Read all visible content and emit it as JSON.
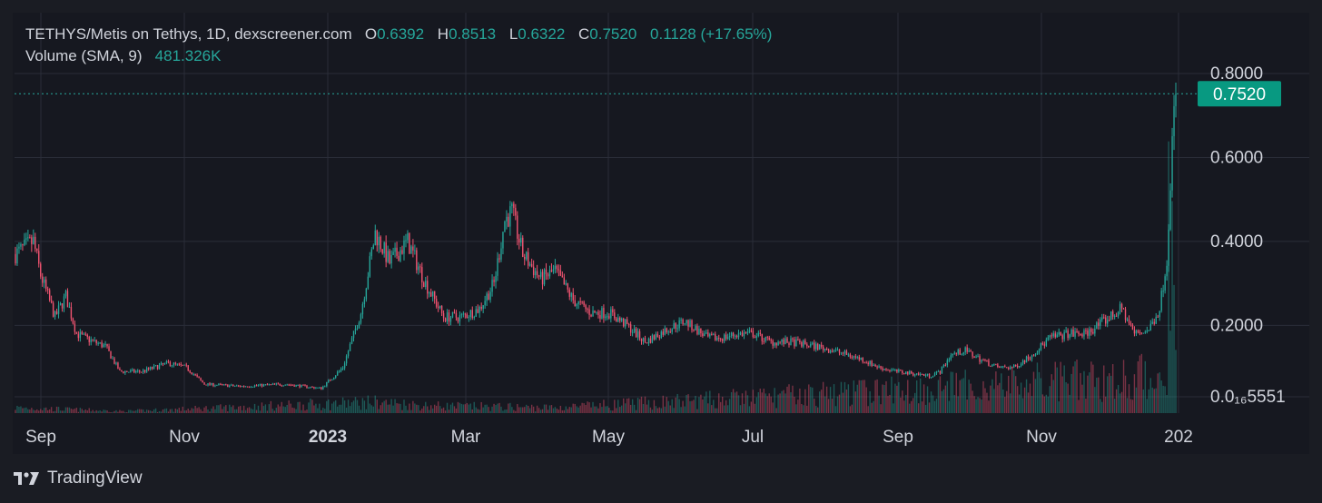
{
  "header": {
    "symbol": "TETHYS/Metis on Tethys, 1D, dexscreener.com",
    "o_label": "O",
    "o_value": "0.6392",
    "h_label": "H",
    "h_value": "0.8513",
    "l_label": "L",
    "l_value": "0.6322",
    "c_label": "C",
    "c_value": "0.7520",
    "change": "0.1128 (+17.65%)",
    "volume_label": "Volume (SMA, 9)",
    "volume_value": "481.326K"
  },
  "footer": {
    "brand": "TradingView"
  },
  "colors": {
    "up": "#26a69a",
    "down": "#ef5370",
    "grid": "#2a2d38",
    "text": "#d1d4dc",
    "price_tag": "#089981"
  },
  "chart_data": {
    "type": "candlestick",
    "title": "TETHYS/Metis on Tethys, 1D, dexscreener.com",
    "x_tick_labels": [
      "Sep",
      "Nov",
      "2023",
      "Mar",
      "May",
      "Jul",
      "Sep",
      "Nov",
      "202"
    ],
    "y_tick_labels": [
      "0.8000",
      "0.6000",
      "0.4000",
      "0.2000",
      "0.0₁₆5551"
    ],
    "y_ticks": [
      0.8,
      0.6,
      0.4,
      0.2,
      0.0
    ],
    "ylim": [
      0.0,
      0.85
    ],
    "last_price": 0.752,
    "last_price_label": "0.7520",
    "grid": true,
    "price_path_points": [
      [
        0,
        0.37
      ],
      [
        10,
        0.4
      ],
      [
        14,
        0.32
      ],
      [
        22,
        0.22
      ],
      [
        28,
        0.27
      ],
      [
        34,
        0.18
      ],
      [
        44,
        0.16
      ],
      [
        50,
        0.15
      ],
      [
        58,
        0.09
      ],
      [
        70,
        0.09
      ],
      [
        85,
        0.11
      ],
      [
        95,
        0.1
      ],
      [
        105,
        0.06
      ],
      [
        125,
        0.055
      ],
      [
        150,
        0.06
      ],
      [
        170,
        0.05
      ],
      [
        182,
        0.1
      ],
      [
        192,
        0.23
      ],
      [
        200,
        0.42
      ],
      [
        208,
        0.35
      ],
      [
        218,
        0.4
      ],
      [
        228,
        0.3
      ],
      [
        238,
        0.22
      ],
      [
        248,
        0.22
      ],
      [
        258,
        0.24
      ],
      [
        266,
        0.3
      ],
      [
        272,
        0.45
      ],
      [
        276,
        0.47
      ],
      [
        282,
        0.37
      ],
      [
        292,
        0.31
      ],
      [
        300,
        0.33
      ],
      [
        310,
        0.26
      ],
      [
        320,
        0.23
      ],
      [
        330,
        0.23
      ],
      [
        340,
        0.2
      ],
      [
        350,
        0.16
      ],
      [
        362,
        0.19
      ],
      [
        372,
        0.21
      ],
      [
        385,
        0.17
      ],
      [
        392,
        0.17
      ],
      [
        402,
        0.18
      ],
      [
        410,
        0.18
      ],
      [
        420,
        0.16
      ],
      [
        432,
        0.16
      ],
      [
        445,
        0.15
      ],
      [
        455,
        0.14
      ],
      [
        470,
        0.12
      ],
      [
        480,
        0.1
      ],
      [
        490,
        0.09
      ],
      [
        500,
        0.085
      ],
      [
        508,
        0.08
      ],
      [
        514,
        0.09
      ],
      [
        520,
        0.13
      ],
      [
        528,
        0.14
      ],
      [
        536,
        0.12
      ],
      [
        546,
        0.1
      ],
      [
        555,
        0.1
      ],
      [
        565,
        0.13
      ],
      [
        575,
        0.17
      ],
      [
        585,
        0.18
      ],
      [
        595,
        0.18
      ],
      [
        605,
        0.21
      ],
      [
        615,
        0.24
      ],
      [
        622,
        0.18
      ],
      [
        630,
        0.19
      ],
      [
        636,
        0.24
      ],
      [
        640,
        0.36
      ],
      [
        643,
        0.64
      ],
      [
        645,
        0.752
      ]
    ],
    "volume_series": {
      "name": "Volume (SMA, 9)",
      "last_value": "481.326K",
      "note_points": [
        [
          0,
          6
        ],
        [
          60,
          2
        ],
        [
          200,
          12
        ],
        [
          230,
          8
        ],
        [
          300,
          6
        ],
        [
          640,
          40
        ],
        [
          645,
          30
        ]
      ]
    }
  }
}
